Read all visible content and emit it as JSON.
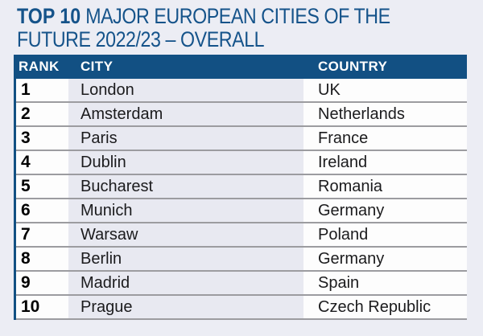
{
  "title": {
    "bold": "TOP 10",
    "line1_rest": "MAJOR EUROPEAN CITIES OF THE",
    "line2": "FUTURE 2022/23 – OVERALL"
  },
  "chart_data": {
    "type": "table",
    "title": "TOP 10 MAJOR EUROPEAN CITIES OF THE FUTURE 2022/23 – OVERALL",
    "columns": [
      "RANK",
      "CITY",
      "COUNTRY"
    ],
    "rows": [
      [
        "1",
        "London",
        "UK"
      ],
      [
        "2",
        "Amsterdam",
        "Netherlands"
      ],
      [
        "3",
        "Paris",
        "France"
      ],
      [
        "4",
        "Dublin",
        "Ireland"
      ],
      [
        "5",
        "Bucharest",
        "Romania"
      ],
      [
        "6",
        "Munich",
        "Germany"
      ],
      [
        "7",
        "Warsaw",
        "Poland"
      ],
      [
        "8",
        "Berlin",
        "Germany"
      ],
      [
        "9",
        "Madrid",
        "Spain"
      ],
      [
        "10",
        "Prague",
        "Czech Republic"
      ]
    ]
  },
  "colors": {
    "brand_blue": "#125083",
    "title_blue": "#15538a",
    "page_background": "#ecedf4",
    "city_column_background": "#e8e9f1",
    "cell_background": "#fdfdfd",
    "separator_gray": "#9c9ca0"
  }
}
